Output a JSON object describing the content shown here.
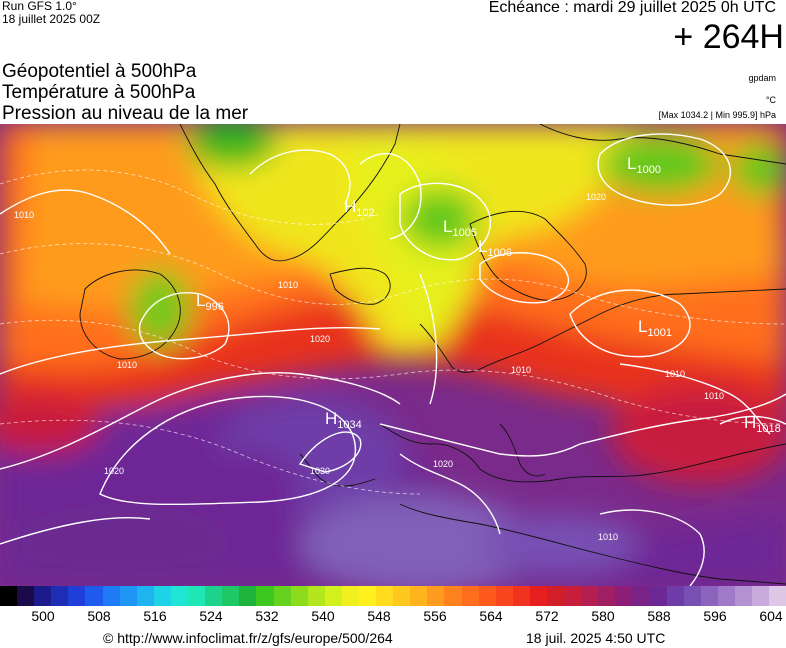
{
  "header": {
    "run": "Run GFS 1.0°",
    "run_date": "18 juillet 2025 00Z",
    "echeance": "Echéance : mardi 29 juillet 2025 0h UTC",
    "lead": "+ 264H"
  },
  "titles": [
    "Géopotentiel à 500hPa",
    "Température à 500hPa",
    "Pression au niveau de la mer"
  ],
  "units": {
    "geopotential": "gpdam",
    "temperature": "°C",
    "pressure_range": "[Max 1034.2 | Min 995.9] hPa"
  },
  "pressure_centers": [
    {
      "type": "H",
      "value": "1034"
    },
    {
      "type": "L",
      "value": "1005"
    },
    {
      "type": "L",
      "value": "1000"
    },
    {
      "type": "L",
      "value": "996"
    },
    {
      "type": "L",
      "value": "1001"
    },
    {
      "type": "L",
      "value": "1006"
    },
    {
      "type": "H",
      "value": "1018"
    },
    {
      "type": "H",
      "value": "102"
    }
  ],
  "isobar_labels": [
    "1010",
    "1010",
    "1020",
    "1010",
    "1020",
    "1030",
    "1020",
    "1010",
    "1010",
    "1010",
    "1010",
    "1020"
  ],
  "colorbar": {
    "colors": [
      "#000000",
      "#1a0a4a",
      "#1b1b8c",
      "#1e2eb4",
      "#1f3fd8",
      "#1e5aee",
      "#1e7af5",
      "#1e96f5",
      "#1eb4f0",
      "#1ed2e8",
      "#1ee6d2",
      "#1ee6b4",
      "#1ed28c",
      "#1ec864",
      "#1eb43c",
      "#3cc81e",
      "#64d21e",
      "#8cdc1e",
      "#b4e61e",
      "#d2f01e",
      "#f0f01e",
      "#fff01e",
      "#ffdc1e",
      "#ffc81e",
      "#ffb41e",
      "#ff9b1e",
      "#ff821e",
      "#ff6e1e",
      "#ff5a1e",
      "#fa461e",
      "#f0321e",
      "#e61e1e",
      "#d21e28",
      "#c81e3c",
      "#b41e50",
      "#a01e64",
      "#8c1e78",
      "#7a2386",
      "#6e2896",
      "#6e3ca8",
      "#7850b4",
      "#8c64be",
      "#a07ac8",
      "#b492d2",
      "#c8aadc",
      "#dcc8e6"
    ],
    "ticks": [
      "500",
      "508",
      "516",
      "524",
      "532",
      "540",
      "548",
      "556",
      "564",
      "572",
      "580",
      "588",
      "596",
      "604"
    ]
  },
  "footer": {
    "url": "© http://www.infoclimat.fr/z/gfs/europe/500/264",
    "timestamp": "18 juil. 2025  4:50 UTC"
  }
}
